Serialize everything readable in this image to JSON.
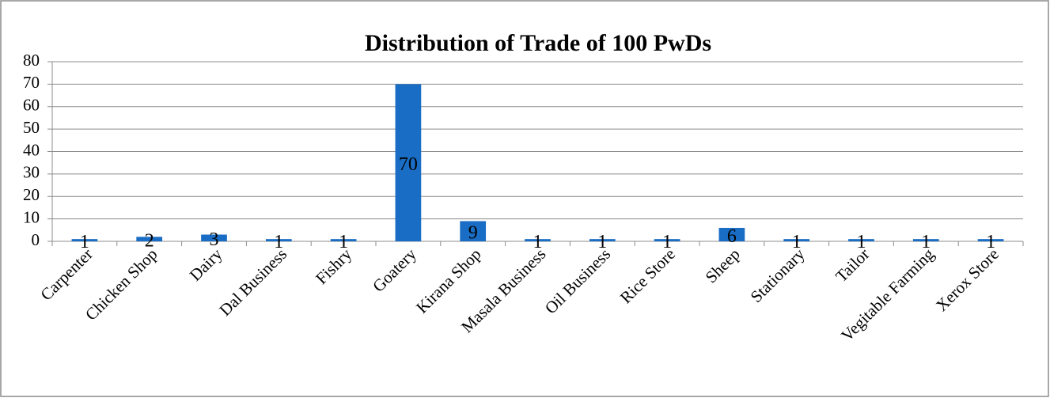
{
  "chart_data": {
    "type": "bar",
    "title": "Distribution of Trade of 100 PwDs",
    "categories": [
      "Carpenter",
      "Chicken Shop",
      "Dairy",
      "Dal Business",
      "Fishry",
      "Goatery",
      "Kirana Shop",
      "Masala Business",
      "Oil Business",
      "Rice Store",
      "Sheep",
      "Stationary",
      "Tailor",
      "Vegitable Farming",
      "Xerox Store"
    ],
    "values": [
      1,
      2,
      3,
      1,
      1,
      70,
      9,
      1,
      1,
      1,
      6,
      1,
      1,
      1,
      1
    ],
    "color": "#1a6dc4",
    "ylim": [
      0,
      80
    ],
    "yticks": [
      0,
      10,
      20,
      30,
      40,
      50,
      60,
      70,
      80
    ],
    "grid": true
  }
}
